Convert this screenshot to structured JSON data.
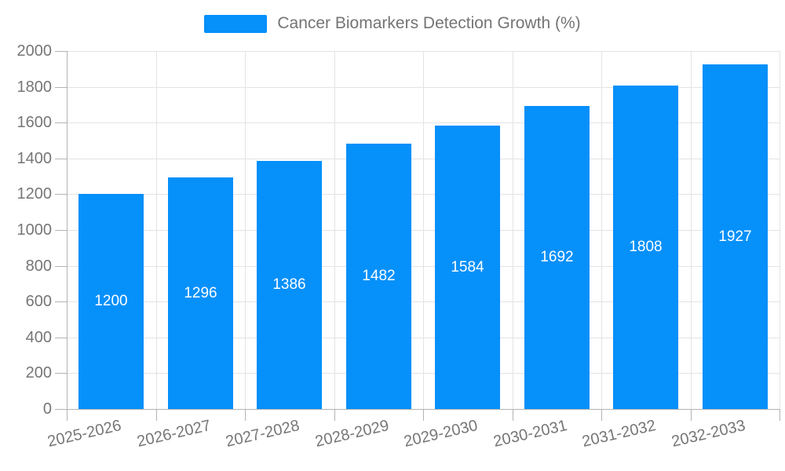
{
  "chart_data": {
    "type": "bar",
    "title": "Cancer Biomarkers Detection Growth (%)",
    "categories": [
      "2025-2026",
      "2026-2027",
      "2027-2028",
      "2028-2029",
      "2029-2030",
      "2030-2031",
      "2031-2032",
      "2032-2033"
    ],
    "series": [
      {
        "name": "Cancer Biomarkers Detection Growth (%)",
        "values": [
          1200,
          1296,
          1386,
          1482,
          1584,
          1692,
          1808,
          1927
        ]
      }
    ],
    "xlabel": "",
    "ylabel": "",
    "ylim": [
      0,
      2000
    ],
    "yticks": [
      0,
      200,
      400,
      600,
      800,
      1000,
      1200,
      1400,
      1600,
      1800,
      2000
    ],
    "grid": true,
    "legend_position": "top-center",
    "bar_label_position": "inside-center",
    "colors": {
      "bar": "#0690fa",
      "grid": "#e3e3e3",
      "axis": "#b3b3b3",
      "tick_text": "#767676",
      "bar_label": "#ffffff",
      "legend_text": "#747474",
      "background": "#ffffff"
    }
  }
}
